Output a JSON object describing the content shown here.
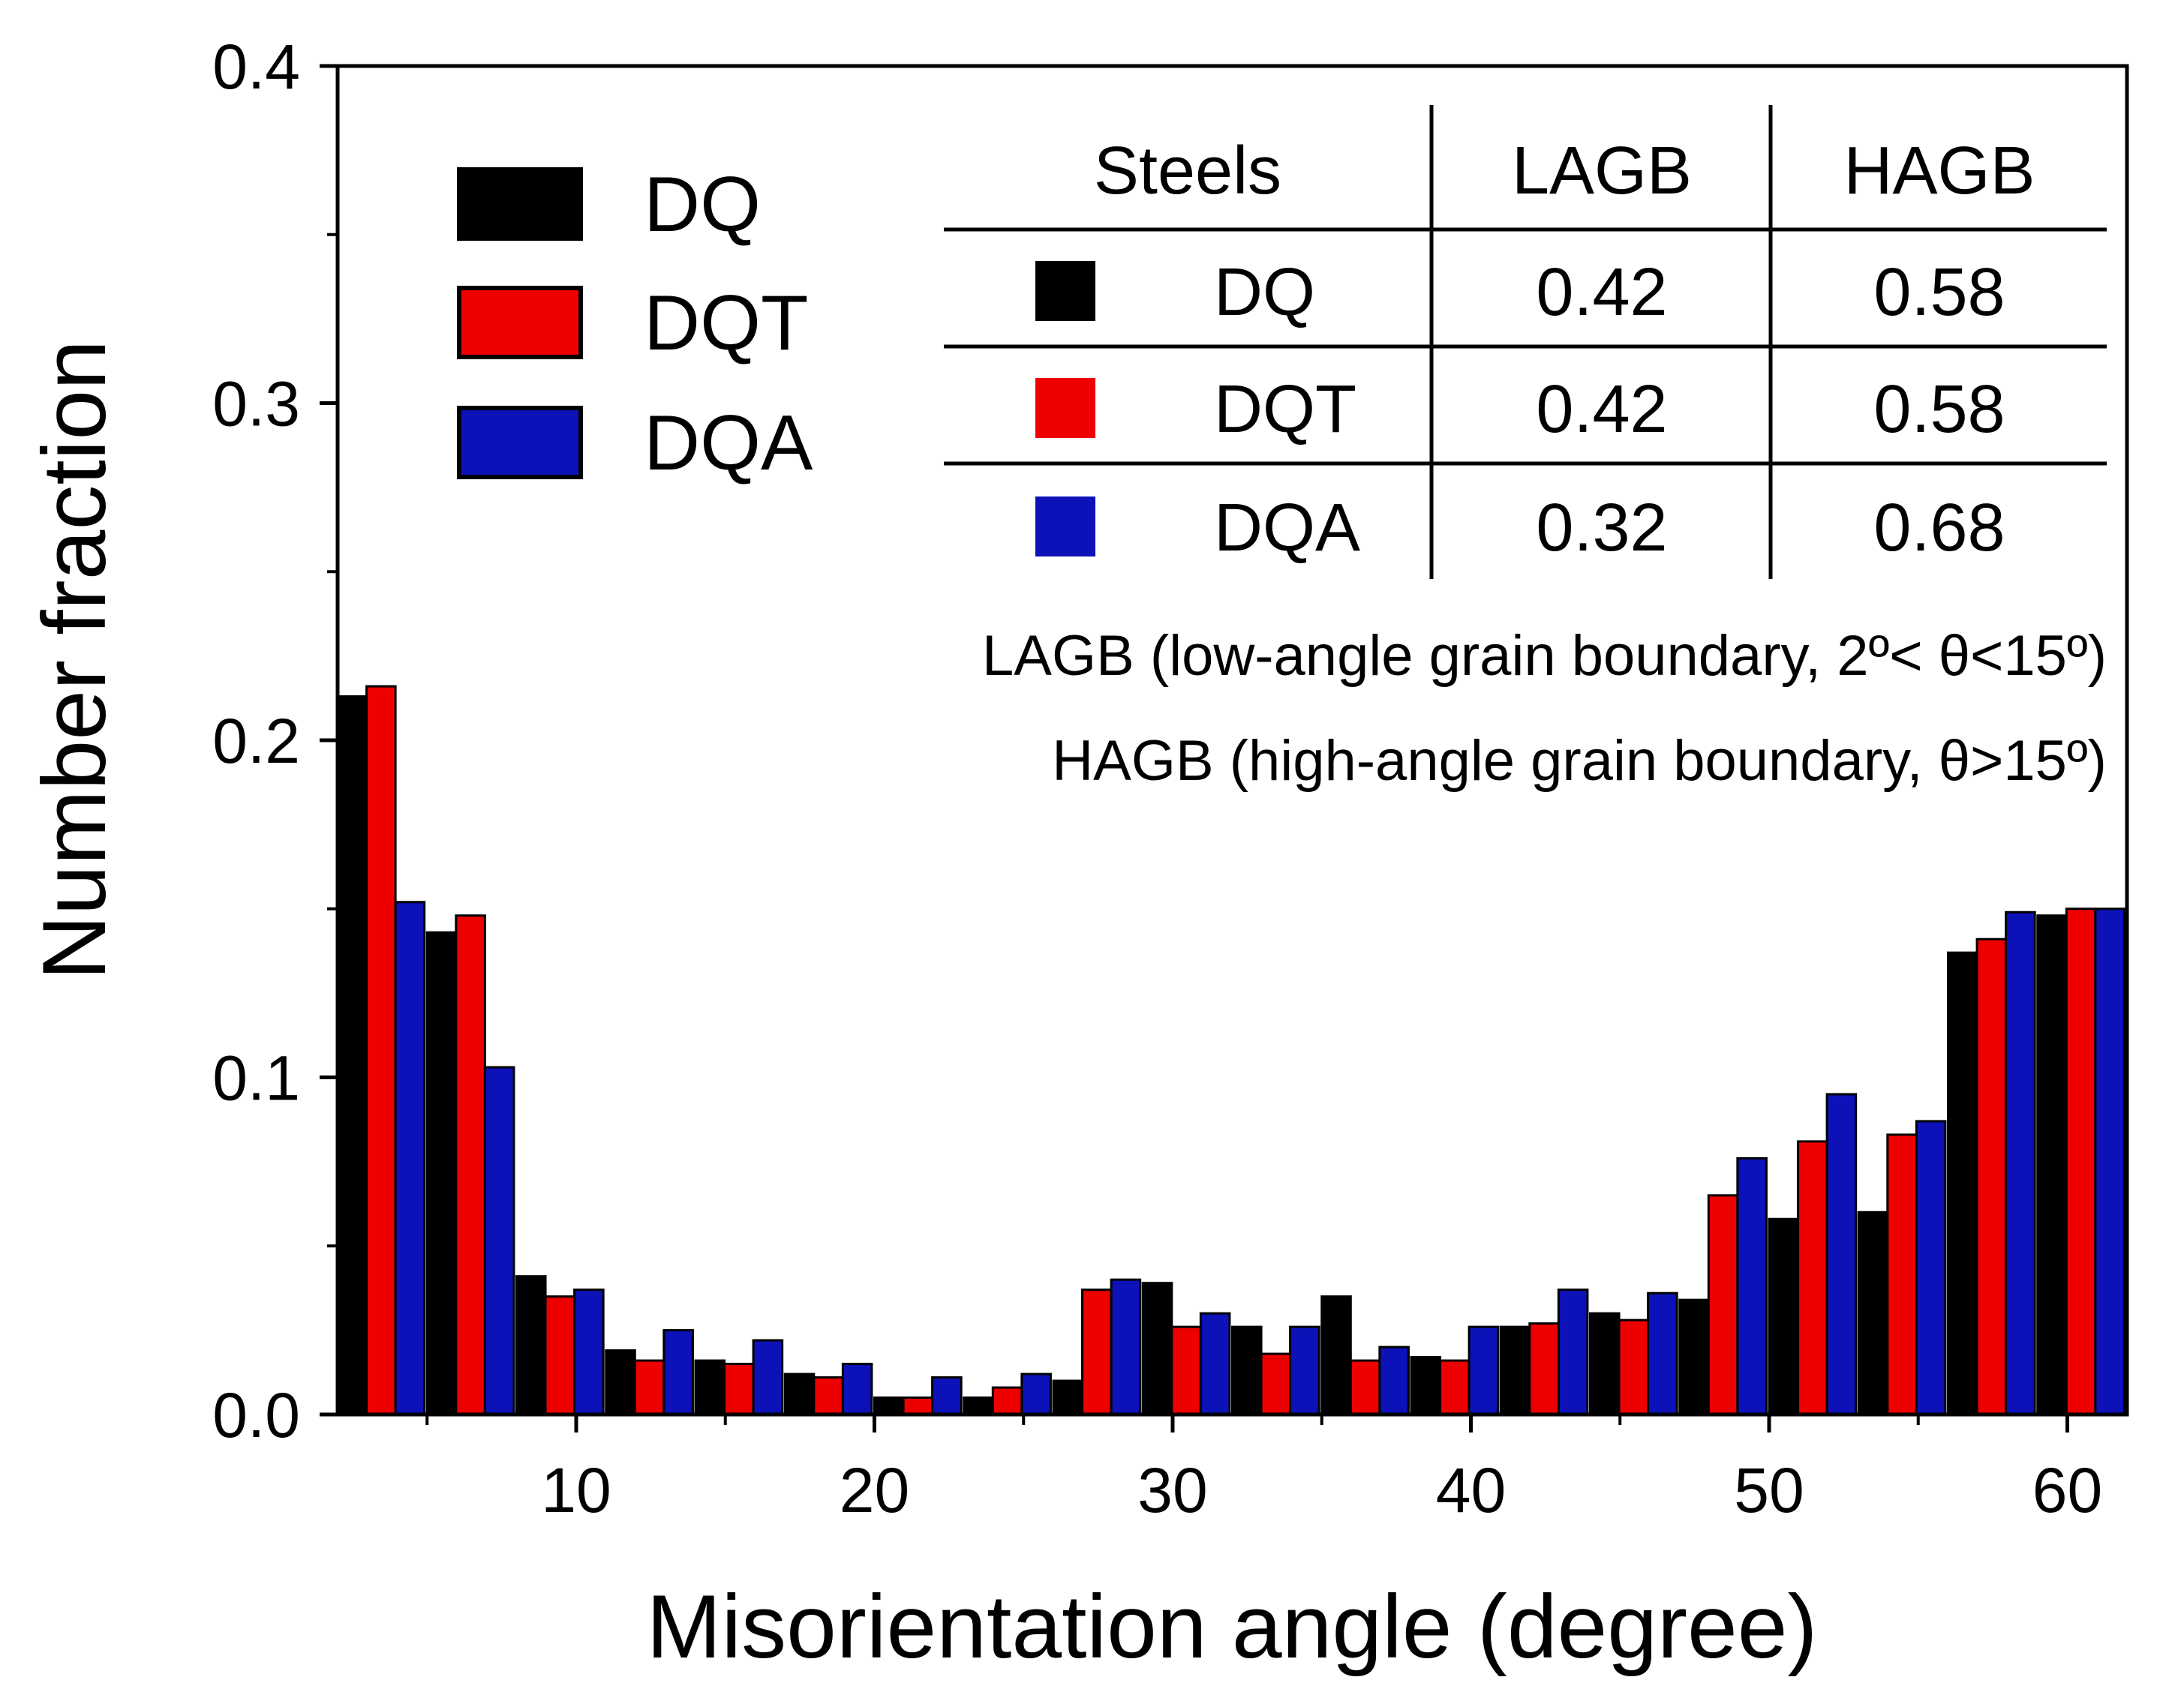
{
  "chart_data": {
    "type": "bar",
    "title": "",
    "xlabel": "Misorientation angle (degree)",
    "ylabel": "Number fraction",
    "xlim": [
      2,
      62
    ],
    "ylim": [
      0,
      0.4
    ],
    "x_ticks": [
      10,
      20,
      30,
      40,
      50,
      60
    ],
    "x_tick_labels": [
      "10",
      "20",
      "30",
      "40",
      "50",
      "60"
    ],
    "y_ticks": [
      0.0,
      0.1,
      0.2,
      0.3,
      0.4
    ],
    "y_tick_labels": [
      "0.0",
      "0.1",
      "0.2",
      "0.3",
      "0.4"
    ],
    "grid": false,
    "legend_position": "top-left",
    "bin_centers": [
      3.5,
      6.5,
      9.5,
      12.5,
      15.5,
      18.5,
      21.5,
      24.5,
      27.5,
      30.5,
      33.5,
      36.5,
      39.5,
      42.5,
      45.5,
      48.5,
      51.5,
      54.5,
      57.5,
      60.5
    ],
    "series": [
      {
        "name": "DQ",
        "color": "#000000",
        "values": [
          0.213,
          0.143,
          0.041,
          0.019,
          0.016,
          0.012,
          0.005,
          0.005,
          0.01,
          0.039,
          0.026,
          0.035,
          0.017,
          0.026,
          0.03,
          0.034,
          0.058,
          0.06,
          0.137,
          0.148
        ]
      },
      {
        "name": "DQT",
        "color": "#ee0000",
        "values": [
          0.216,
          0.148,
          0.035,
          0.016,
          0.015,
          0.011,
          0.005,
          0.008,
          0.037,
          0.026,
          0.018,
          0.016,
          0.016,
          0.027,
          0.028,
          0.065,
          0.081,
          0.083,
          0.141,
          0.15
        ]
      },
      {
        "name": "DQA",
        "color": "#0c12b8",
        "values": [
          0.152,
          0.103,
          0.037,
          0.025,
          0.022,
          0.015,
          0.011,
          0.012,
          0.04,
          0.03,
          0.026,
          0.02,
          0.026,
          0.037,
          0.036,
          0.076,
          0.095,
          0.087,
          0.149,
          0.15
        ]
      }
    ],
    "inset_table": {
      "headers": [
        "Steels",
        "LAGB",
        "HAGB"
      ],
      "rows": [
        {
          "steel": "DQ",
          "color": "#000000",
          "lagb": "0.42",
          "hagb": "0.58"
        },
        {
          "steel": "DQT",
          "color": "#ee0000",
          "lagb": "0.42",
          "hagb": "0.58"
        },
        {
          "steel": "DQA",
          "color": "#0c12b8",
          "lagb": "0.32",
          "hagb": "0.68"
        }
      ]
    },
    "annotations": [
      "LAGB (low-angle grain boundary, 2º< θ<15º)",
      "HAGB (high-angle grain boundary, θ>15º)"
    ]
  }
}
